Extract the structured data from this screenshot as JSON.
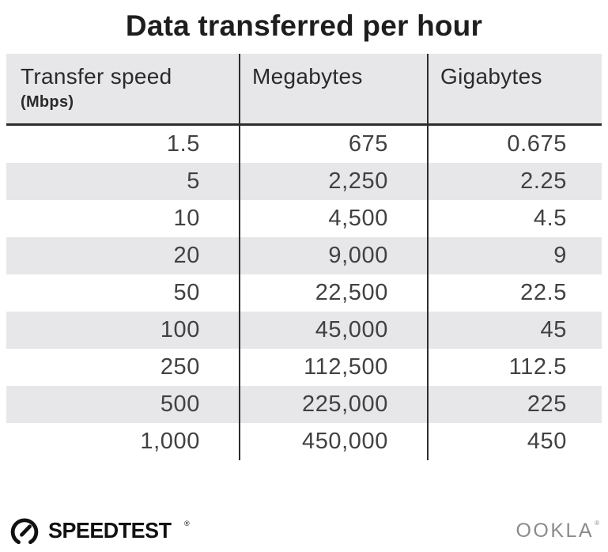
{
  "title": "Data transferred per hour",
  "table": {
    "header": {
      "col1_label": "Transfer speed",
      "col1_sublabel": "(Mbps)",
      "col2_label": "Megabytes",
      "col3_label": "Gigabytes"
    },
    "rows": [
      [
        "1.5",
        "675",
        "0.675"
      ],
      [
        "5",
        "2,250",
        "2.25"
      ],
      [
        "10",
        "4,500",
        "4.5"
      ],
      [
        "20",
        "9,000",
        "9"
      ],
      [
        "50",
        "22,500",
        "22.5"
      ],
      [
        "100",
        "45,000",
        "45"
      ],
      [
        "250",
        "112,500",
        "112.5"
      ],
      [
        "500",
        "225,000",
        "225"
      ],
      [
        "1,000",
        "450,000",
        "450"
      ]
    ]
  },
  "footer": {
    "speedtest_label": "SPEEDTEST",
    "speedtest_registered_mark": "®",
    "ookla_label": "OOKLA",
    "ookla_registered_mark": "®"
  },
  "colors": {
    "stripe_bg": "#e7e7ea",
    "divider": "#2d2d2d",
    "title_text": "#1e1e1e",
    "number_text": "#414141",
    "ookla_gray": "#8b8b8d",
    "speedtest_black": "#111111"
  },
  "chart_data": {
    "type": "table",
    "title": "Data transferred per hour",
    "columns": [
      "Transfer speed (Mbps)",
      "Megabytes",
      "Gigabytes"
    ],
    "rows": [
      [
        1.5,
        675,
        0.675
      ],
      [
        5,
        2250,
        2.25
      ],
      [
        10,
        4500,
        4.5
      ],
      [
        20,
        9000,
        9
      ],
      [
        50,
        22500,
        22.5
      ],
      [
        100,
        45000,
        45
      ],
      [
        250,
        112500,
        112.5
      ],
      [
        500,
        225000,
        225
      ],
      [
        1000,
        450000,
        450
      ]
    ]
  }
}
